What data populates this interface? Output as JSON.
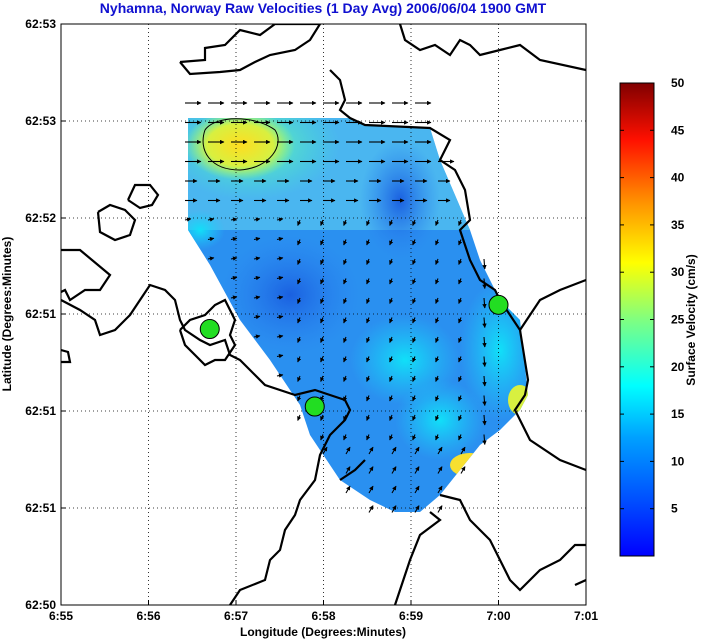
{
  "chart_data": {
    "type": "heatmap",
    "title": "Nyhamna, Norway Raw Velocities (1 Day Avg) 2006/06/04 1900 GMT",
    "xlabel": "Longitude (Degrees:Minutes)",
    "ylabel": "Latitude (Degrees:Minutes)",
    "x_ticks": [
      "6:55",
      "6:56",
      "6:57",
      "6:58",
      "6:59",
      "7:00",
      "7:01"
    ],
    "y_ticks": [
      "62:53",
      "62:53",
      "62:52",
      "62:51",
      "62:51",
      "62:51",
      "62:50"
    ],
    "grid": true,
    "colorbar": {
      "label": "Surface Velocity (cm/s)",
      "min": 0,
      "max": 50,
      "ticks": [
        "5",
        "10",
        "15",
        "20",
        "25",
        "30",
        "35",
        "40",
        "45",
        "50"
      ],
      "colormap": "jet"
    },
    "sites": [
      {
        "lon_min": 1.7,
        "lat_min": 2.85
      },
      {
        "lon_min": 2.9,
        "lat_min": 2.05
      },
      {
        "lon_min": 5.0,
        "lat_min": 3.1
      }
    ],
    "colors": {
      "site_fill": "#22dd22",
      "land_outline": "#000000",
      "title_color": "#1010d0"
    }
  }
}
